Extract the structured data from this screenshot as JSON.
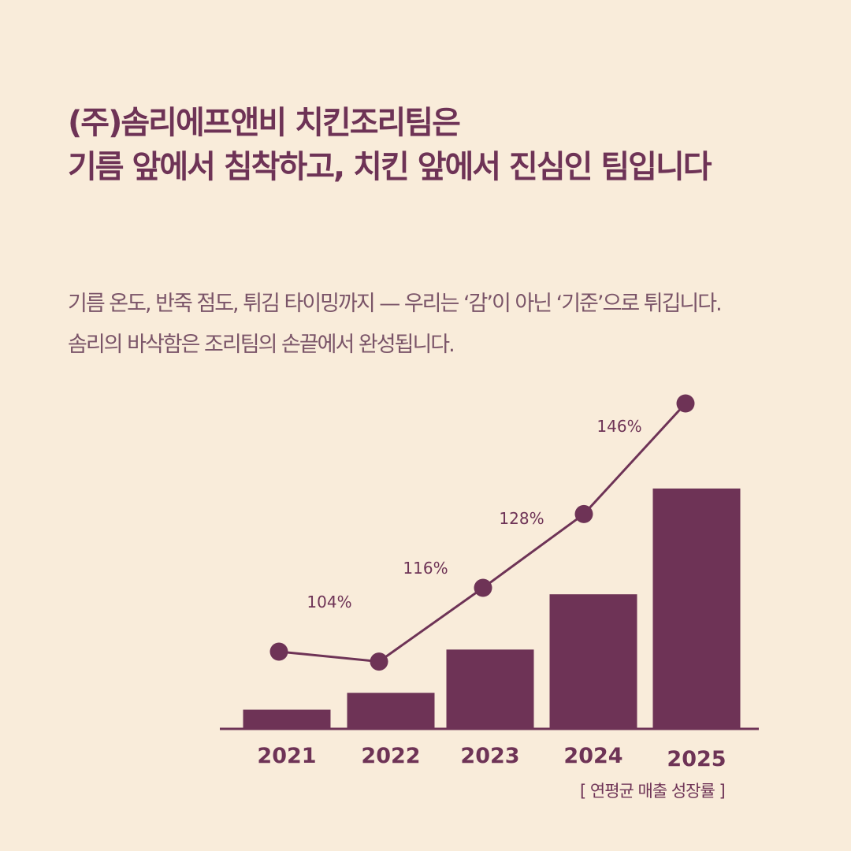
{
  "header": {
    "title_line1": "(주)솜리에프앤비 치킨조리팀은",
    "title_line2": "기름 앞에서 침착하고, 치킨 앞에서 진심인 팀입니다"
  },
  "body": {
    "line1": "기름 온도, 반죽 점도, 튀김 타이밍까지 — 우리는 ‘감’이 아닌 ‘기준’으로 튀깁니다.",
    "line2": "솜리의 바삭함은 조리팀의 손끝에서 완성됩니다."
  },
  "colors": {
    "background": "#f9ecda",
    "accent": "#6e3356",
    "body_text": "#7a5468"
  },
  "chart_data": {
    "type": "bar+line",
    "categories": [
      "2021",
      "2022",
      "2023",
      "2024",
      "2025"
    ],
    "bar_values": [
      8,
      15,
      33,
      56,
      100
    ],
    "line_values": [
      null,
      104,
      116,
      128,
      146
    ],
    "line_labels": [
      "",
      "104%",
      "116%",
      "128%",
      "146%"
    ],
    "caption": "[ 연평균 매출 성장률 ]",
    "grid": false,
    "legend": "none"
  }
}
